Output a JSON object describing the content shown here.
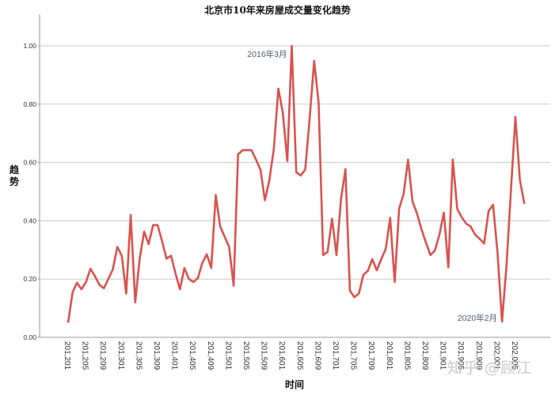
{
  "chart_data": {
    "type": "line",
    "title": "北京市10年来房屋成交量变化趋势",
    "xlabel": "时间",
    "ylabel": "趋势",
    "ylim": [
      0,
      1.1
    ],
    "yticks": [
      "0.00",
      "0.20",
      "0.40",
      "0.60",
      "0.80",
      "1.00"
    ],
    "ytick_values": [
      0,
      0.2,
      0.4,
      0.6,
      0.8,
      1.0
    ],
    "grid": "horizontal",
    "line_color": "#d9534f",
    "xtick_labels": [
      "201,201",
      "201,205",
      "201,209",
      "201,301",
      "201,305",
      "201,309",
      "201,401",
      "201,405",
      "201,409",
      "201,501",
      "201,505",
      "201,509",
      "201,601",
      "201,605",
      "201,609",
      "201,701",
      "201,705",
      "201,709",
      "201,801",
      "201,805",
      "201,809",
      "201,901",
      "201,905",
      "201,909",
      "202,001",
      "202,005"
    ],
    "annotations": [
      {
        "text": "2016年3月",
        "index": 50
      },
      {
        "text": "2020年2月",
        "index": 97
      }
    ],
    "series": [
      {
        "name": "趋势",
        "start": "2012-01",
        "values": [
          0.05,
          0.155,
          0.187,
          0.165,
          0.19,
          0.235,
          0.21,
          0.18,
          0.168,
          0.2,
          0.233,
          0.31,
          0.28,
          0.15,
          0.42,
          0.12,
          0.27,
          0.363,
          0.32,
          0.385,
          0.385,
          0.33,
          0.27,
          0.28,
          0.22,
          0.165,
          0.238,
          0.2,
          0.19,
          0.203,
          0.255,
          0.285,
          0.238,
          0.488,
          0.38,
          0.345,
          0.31,
          0.177,
          0.628,
          0.642,
          0.642,
          0.642,
          0.61,
          0.575,
          0.47,
          0.54,
          0.648,
          0.853,
          0.77,
          0.605,
          1.0,
          0.567,
          0.555,
          0.575,
          0.75,
          0.948,
          0.806,
          0.282,
          0.293,
          0.407,
          0.282,
          0.474,
          0.577,
          0.16,
          0.138,
          0.15,
          0.214,
          0.228,
          0.268,
          0.23,
          0.268,
          0.303,
          0.41,
          0.19,
          0.441,
          0.492,
          0.61,
          0.466,
          0.425,
          0.37,
          0.325,
          0.282,
          0.298,
          0.352,
          0.428,
          0.24,
          0.61,
          0.441,
          0.412,
          0.39,
          0.38,
          0.352,
          0.338,
          0.322,
          0.433,
          0.455,
          0.29,
          0.054,
          0.244,
          0.507,
          0.756,
          0.539,
          0.458
        ]
      }
    ]
  },
  "watermark": "知乎 @顾江"
}
